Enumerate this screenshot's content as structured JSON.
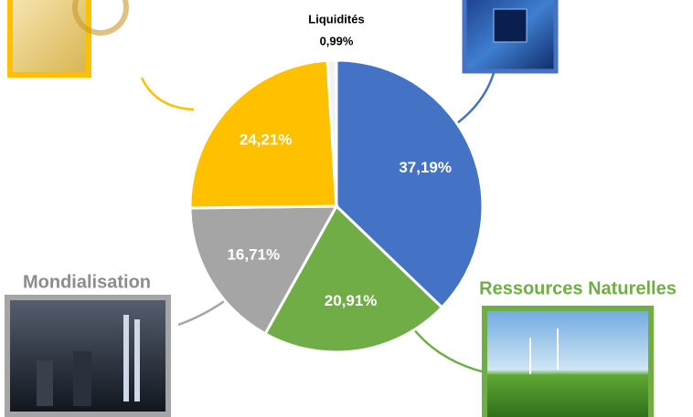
{
  "chart_data": {
    "type": "pie",
    "categories": [
      null,
      "Ressources Naturelles",
      "Mondialisation",
      null,
      "Liquidités"
    ],
    "values": [
      37.19,
      20.91,
      16.71,
      24.21,
      0.99
    ],
    "value_labels": [
      "37,19%",
      "20,91%",
      "16,71%",
      "24,21%",
      "0,99%"
    ],
    "colors": [
      "#4472c4",
      "#70ad47",
      "#a5a5a5",
      "#ffc000",
      "#f2f2f2"
    ]
  }
}
